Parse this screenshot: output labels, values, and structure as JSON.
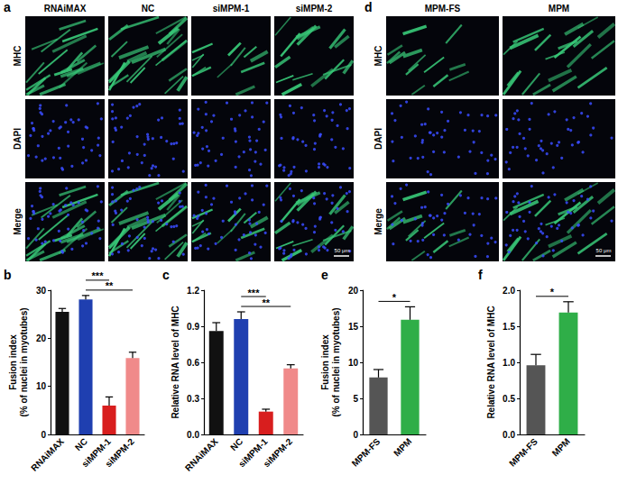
{
  "image_panels": [
    {
      "panel": "a",
      "columns": [
        "RNAiMAX",
        "NC",
        "siMPM-1",
        "siMPM-2"
      ],
      "rows": [
        "MHC",
        "DAPI",
        "Merge"
      ],
      "scale_bar": "50 μm"
    },
    {
      "panel": "d",
      "columns": [
        "MPM-FS",
        "MPM"
      ],
      "rows": [
        "MHC",
        "DAPI",
        "Merge"
      ],
      "scale_bar": "50 μm"
    }
  ],
  "chart_data": [
    {
      "panel": "b",
      "type": "bar",
      "ylabel": "Fusion index\n(% of nuclei in myotubes)",
      "categories": [
        "RNAiMAX",
        "NC",
        "siMPM-1",
        "siMPM-2"
      ],
      "values": [
        25.5,
        28.1,
        6.0,
        15.9
      ],
      "errors": [
        0.7,
        0.8,
        1.8,
        1.2
      ],
      "colors": [
        "#111111",
        "#1f3fb0",
        "#d81e1e",
        "#f08a8a"
      ],
      "ylim": [
        0,
        30
      ],
      "yticks": [
        0,
        10,
        20,
        30
      ],
      "grid": false,
      "annotations": [
        {
          "from": "NC",
          "to": "siMPM-1",
          "text": "***"
        },
        {
          "from": "NC",
          "to": "siMPM-2",
          "text": "**"
        }
      ]
    },
    {
      "panel": "c",
      "type": "bar",
      "ylabel": "Relative RNA level of MHC",
      "categories": [
        "RNAiMAX",
        "NC",
        "siMPM-1",
        "siMPM-2"
      ],
      "values": [
        0.86,
        0.96,
        0.19,
        0.55
      ],
      "errors": [
        0.07,
        0.06,
        0.02,
        0.03
      ],
      "colors": [
        "#111111",
        "#1f3fb0",
        "#d81e1e",
        "#f08a8a"
      ],
      "ylim": [
        0,
        1.2
      ],
      "yticks": [
        {
          "value": 0,
          "label": "0.0"
        },
        0.3,
        0.6,
        0.9,
        1.2
      ],
      "grid": false,
      "annotations": [
        {
          "from": "NC",
          "to": "siMPM-1",
          "text": "***"
        },
        {
          "from": "NC",
          "to": "siMPM-2",
          "text": "**"
        }
      ]
    },
    {
      "panel": "e",
      "type": "bar",
      "ylabel": "Fusion index\n(% of nuclei in myotubes)",
      "categories": [
        "MPM-FS",
        "MPM"
      ],
      "values": [
        7.9,
        15.9
      ],
      "errors": [
        1.1,
        1.8
      ],
      "colors": [
        "#555555",
        "#2fae48"
      ],
      "ylim": [
        0,
        20
      ],
      "yticks": [
        0,
        5,
        10,
        15,
        20
      ],
      "grid": false,
      "annotations": [
        {
          "from": "MPM-FS",
          "to": "MPM",
          "text": "*"
        }
      ]
    },
    {
      "panel": "f",
      "type": "bar",
      "ylabel": "Relative RNA level of MHC",
      "categories": [
        "MPM-FS",
        "MPM"
      ],
      "values": [
        0.96,
        1.69
      ],
      "errors": [
        0.15,
        0.15
      ],
      "colors": [
        "#555555",
        "#2fae48"
      ],
      "ylim": [
        0,
        2.0
      ],
      "yticks": [
        {
          "value": 0,
          "label": "0.0"
        },
        0.5,
        {
          "value": 1,
          "label": "1.0"
        },
        1.5,
        {
          "value": 2,
          "label": "2.0"
        }
      ],
      "grid": false,
      "annotations": [
        {
          "from": "MPM-FS",
          "to": "MPM",
          "text": "*"
        }
      ]
    }
  ]
}
